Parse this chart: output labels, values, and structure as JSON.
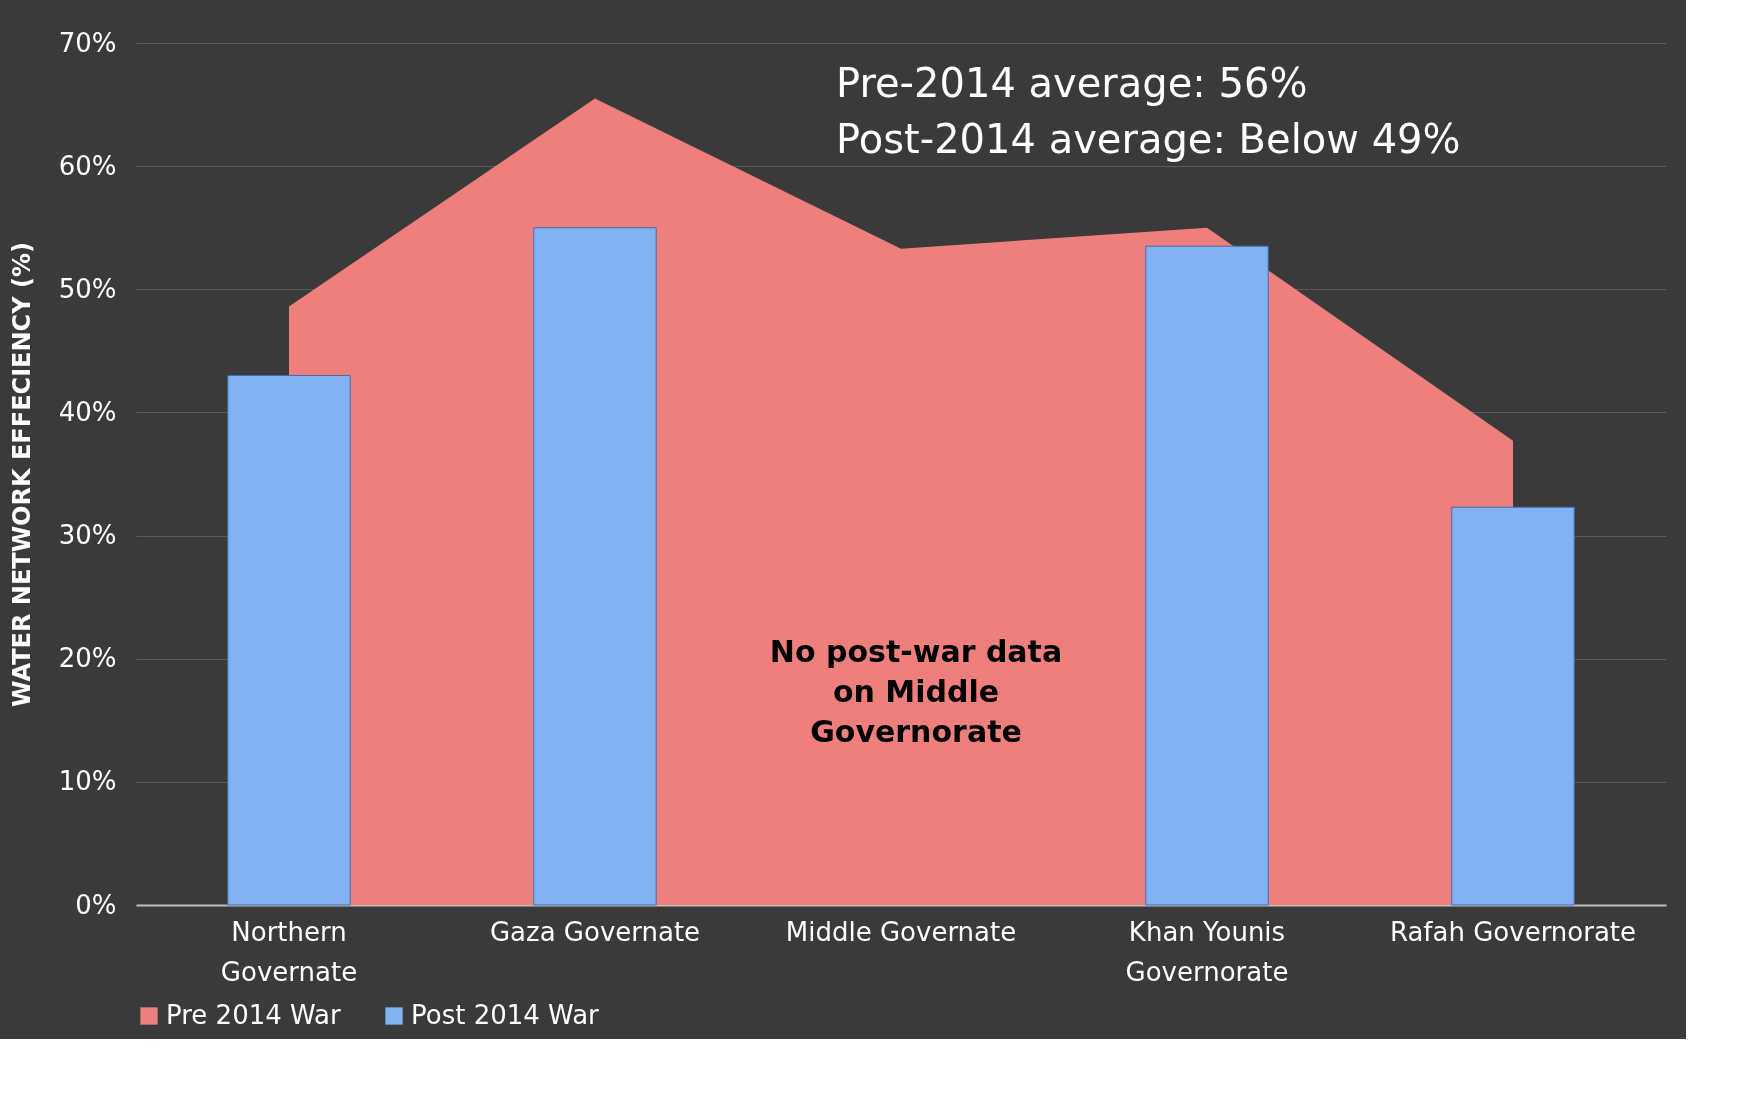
{
  "chart_data": {
    "type": "bar",
    "ylabel": "WATER NETWORK EFFECIENCY (%)",
    "categories": [
      "Northern\nGovernate",
      "Gaza Governate",
      "Middle Governate",
      "Khan Younis\nGovernorate",
      "Rafah Governorate"
    ],
    "series": [
      {
        "name": "Pre 2014 War",
        "type": "area",
        "color": "#ef7f7c",
        "values": [
          48.6,
          65.5,
          53.3,
          55.0,
          37.7
        ]
      },
      {
        "name": "Post 2014 War",
        "color": "#82b2f2",
        "values": [
          43.0,
          55.0,
          null,
          53.5,
          32.3
        ]
      }
    ],
    "ylim": [
      0,
      70
    ],
    "yticks": [
      {
        "value": 0,
        "label": "0%"
      },
      {
        "value": 10,
        "label": "10%"
      },
      {
        "value": 20,
        "label": "20%"
      },
      {
        "value": 30,
        "label": "30%"
      },
      {
        "value": 40,
        "label": "40%"
      },
      {
        "value": 50,
        "label": "50%"
      },
      {
        "value": 60,
        "label": "60%"
      },
      {
        "value": 70,
        "label": "70%"
      }
    ],
    "grid": "y",
    "legend": "bottom",
    "annotations": [
      "Pre-2014 average: 56%",
      "Post-2014 average: Below 49%",
      "No post-war data\non Middle\nGovernorate"
    ]
  }
}
